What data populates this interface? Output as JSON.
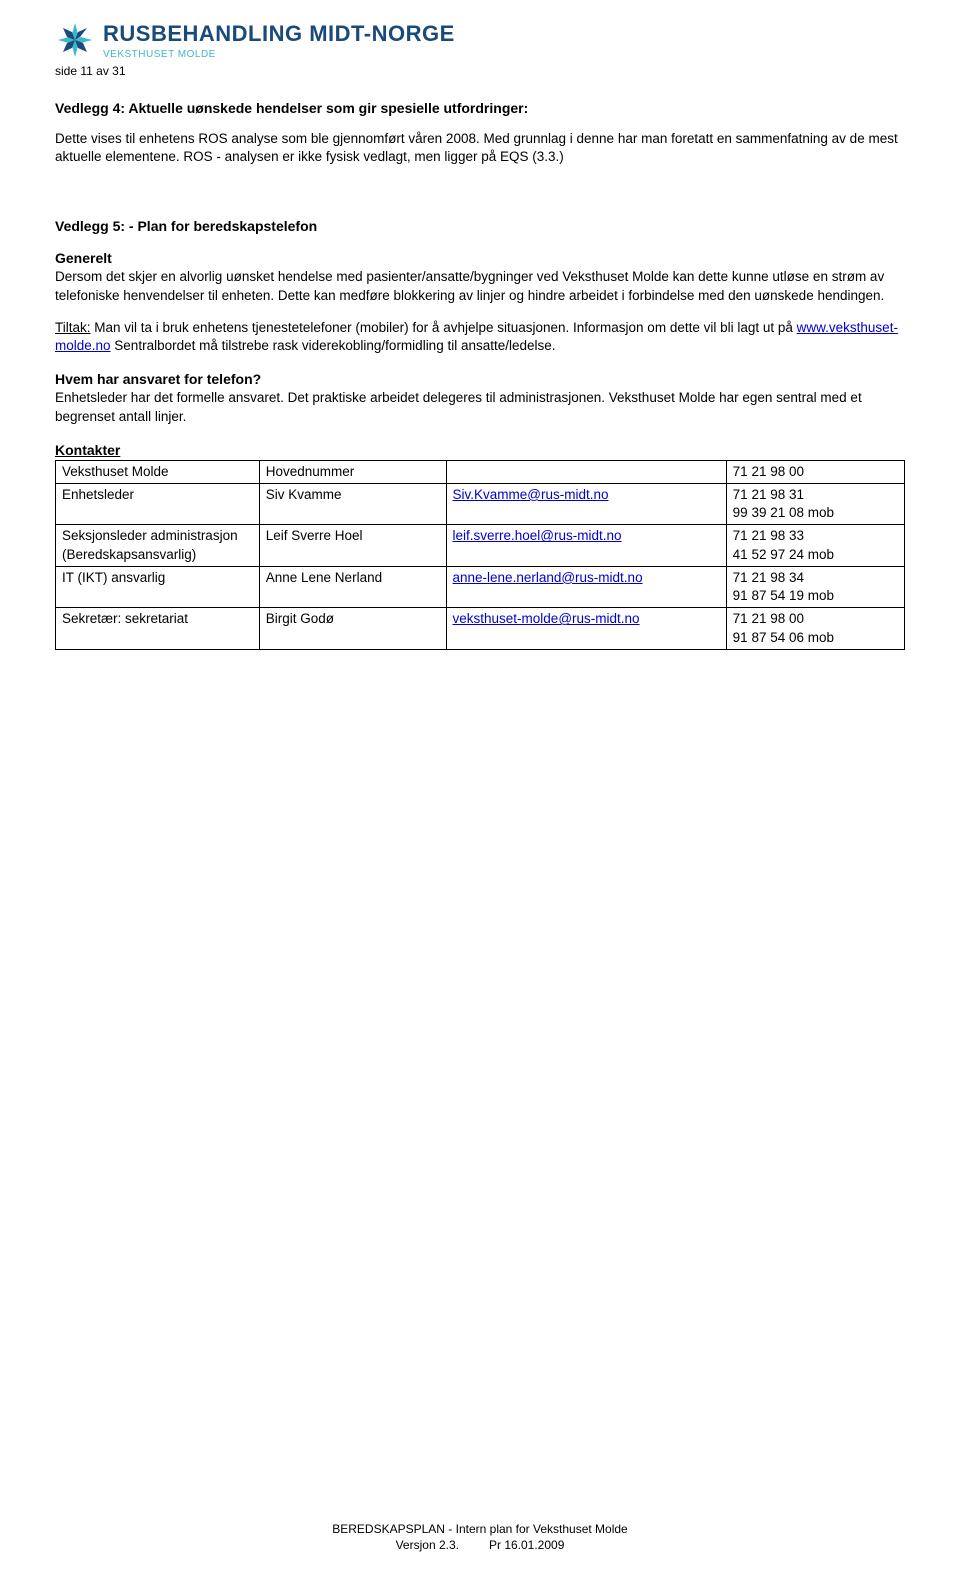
{
  "colors": {
    "brand_main": "#1a4a7a",
    "brand_accent": "#3cb9c6",
    "link": "#0000cc",
    "text": "#000000",
    "background": "#ffffff",
    "table_border": "#000000"
  },
  "fonts": {
    "body_family": "Arial",
    "body_size_pt": 10,
    "heading_size_pt": 10.5,
    "logo_main_size_pt": 16,
    "logo_sub_size_pt": 7.5
  },
  "header": {
    "brand_main": "RUSBEHANDLING MIDT-NORGE",
    "brand_sub": "VEKSTHUSET MOLDE",
    "page_indicator": "side 11 av 31"
  },
  "vedlegg4": {
    "title": "Vedlegg 4: Aktuelle uønskede hendelser som gir spesielle utfordringer:",
    "para1": "Dette vises til enhetens ROS analyse som ble gjennomført våren 2008. Med grunnlag i denne har man foretatt en sammenfatning av de mest aktuelle elementene.   ROS - analysen er ikke fysisk vedlagt, men ligger på EQS (3.3.)"
  },
  "vedlegg5": {
    "title": "Vedlegg 5: - Plan for beredskapstelefon",
    "generelt_label": "Generelt",
    "generelt_text": "Dersom det skjer en alvorlig uønsket hendelse med pasienter/ansatte/bygninger ved Veksthuset Molde kan dette kunne utløse en strøm av telefoniske henvendelser til enheten. Dette kan medføre blokkering av linjer og hindre arbeidet i forbindelse med den uønskede hendingen.",
    "tiltak_label": "Tiltak:",
    "tiltak_text_a": " Man vil ta i bruk enhetens tjenestetelefoner (mobiler) for å avhjelpe situasjonen. Informasjon om dette vil bli lagt ut på ",
    "tiltak_link": "www.veksthuset-molde.no",
    "tiltak_text_b": "  Sentralbordet må tilstrebe rask viderekobling/formidling til ansatte/ledelse.",
    "ansvar_q": "Hvem har ansvaret for telefon?",
    "ansvar_text": "Enhetsleder har det formelle ansvaret. Det praktiske arbeidet delegeres til administrasjonen. Veksthuset Molde har egen sentral med et begrenset antall linjer.",
    "kontakter_label": "Kontakter"
  },
  "contacts_table": {
    "type": "table",
    "column_widths_pct": [
      24,
      22,
      33,
      21
    ],
    "rows": [
      {
        "role": "Veksthuset Molde",
        "name": "Hovednummer",
        "email": "",
        "phones": [
          "71 21 98 00"
        ]
      },
      {
        "role": "Enhetsleder",
        "name": "Siv Kvamme",
        "email": "Siv.Kvamme@rus-midt.no",
        "phones": [
          "71 21 98 31",
          "99 39 21 08 mob"
        ]
      },
      {
        "role": "Seksjonsleder administrasjon (Beredskapsansvarlig)",
        "name": "Leif Sverre Hoel",
        "email": "leif.sverre.hoel@rus-midt.no",
        "phones": [
          "71 21 98 33",
          "41 52 97 24 mob"
        ]
      },
      {
        "role": "IT (IKT) ansvarlig",
        "name": "Anne Lene Nerland",
        "email": "anne-lene.nerland@rus-midt.no",
        "phones": [
          "71 21 98 34",
          "91 87 54 19 mob"
        ]
      },
      {
        "role": "Sekretær: sekretariat",
        "name": "Birgit Godø",
        "email": "veksthuset-molde@rus-midt.no",
        "phones": [
          "71 21 98 00",
          "91 87 54 06 mob"
        ]
      }
    ]
  },
  "footer": {
    "line1": "BEREDSKAPSPLAN -  Intern plan for Veksthuset Molde",
    "line2_left": "Versjon 2.3.",
    "line2_right": "Pr 16.01.2009"
  }
}
